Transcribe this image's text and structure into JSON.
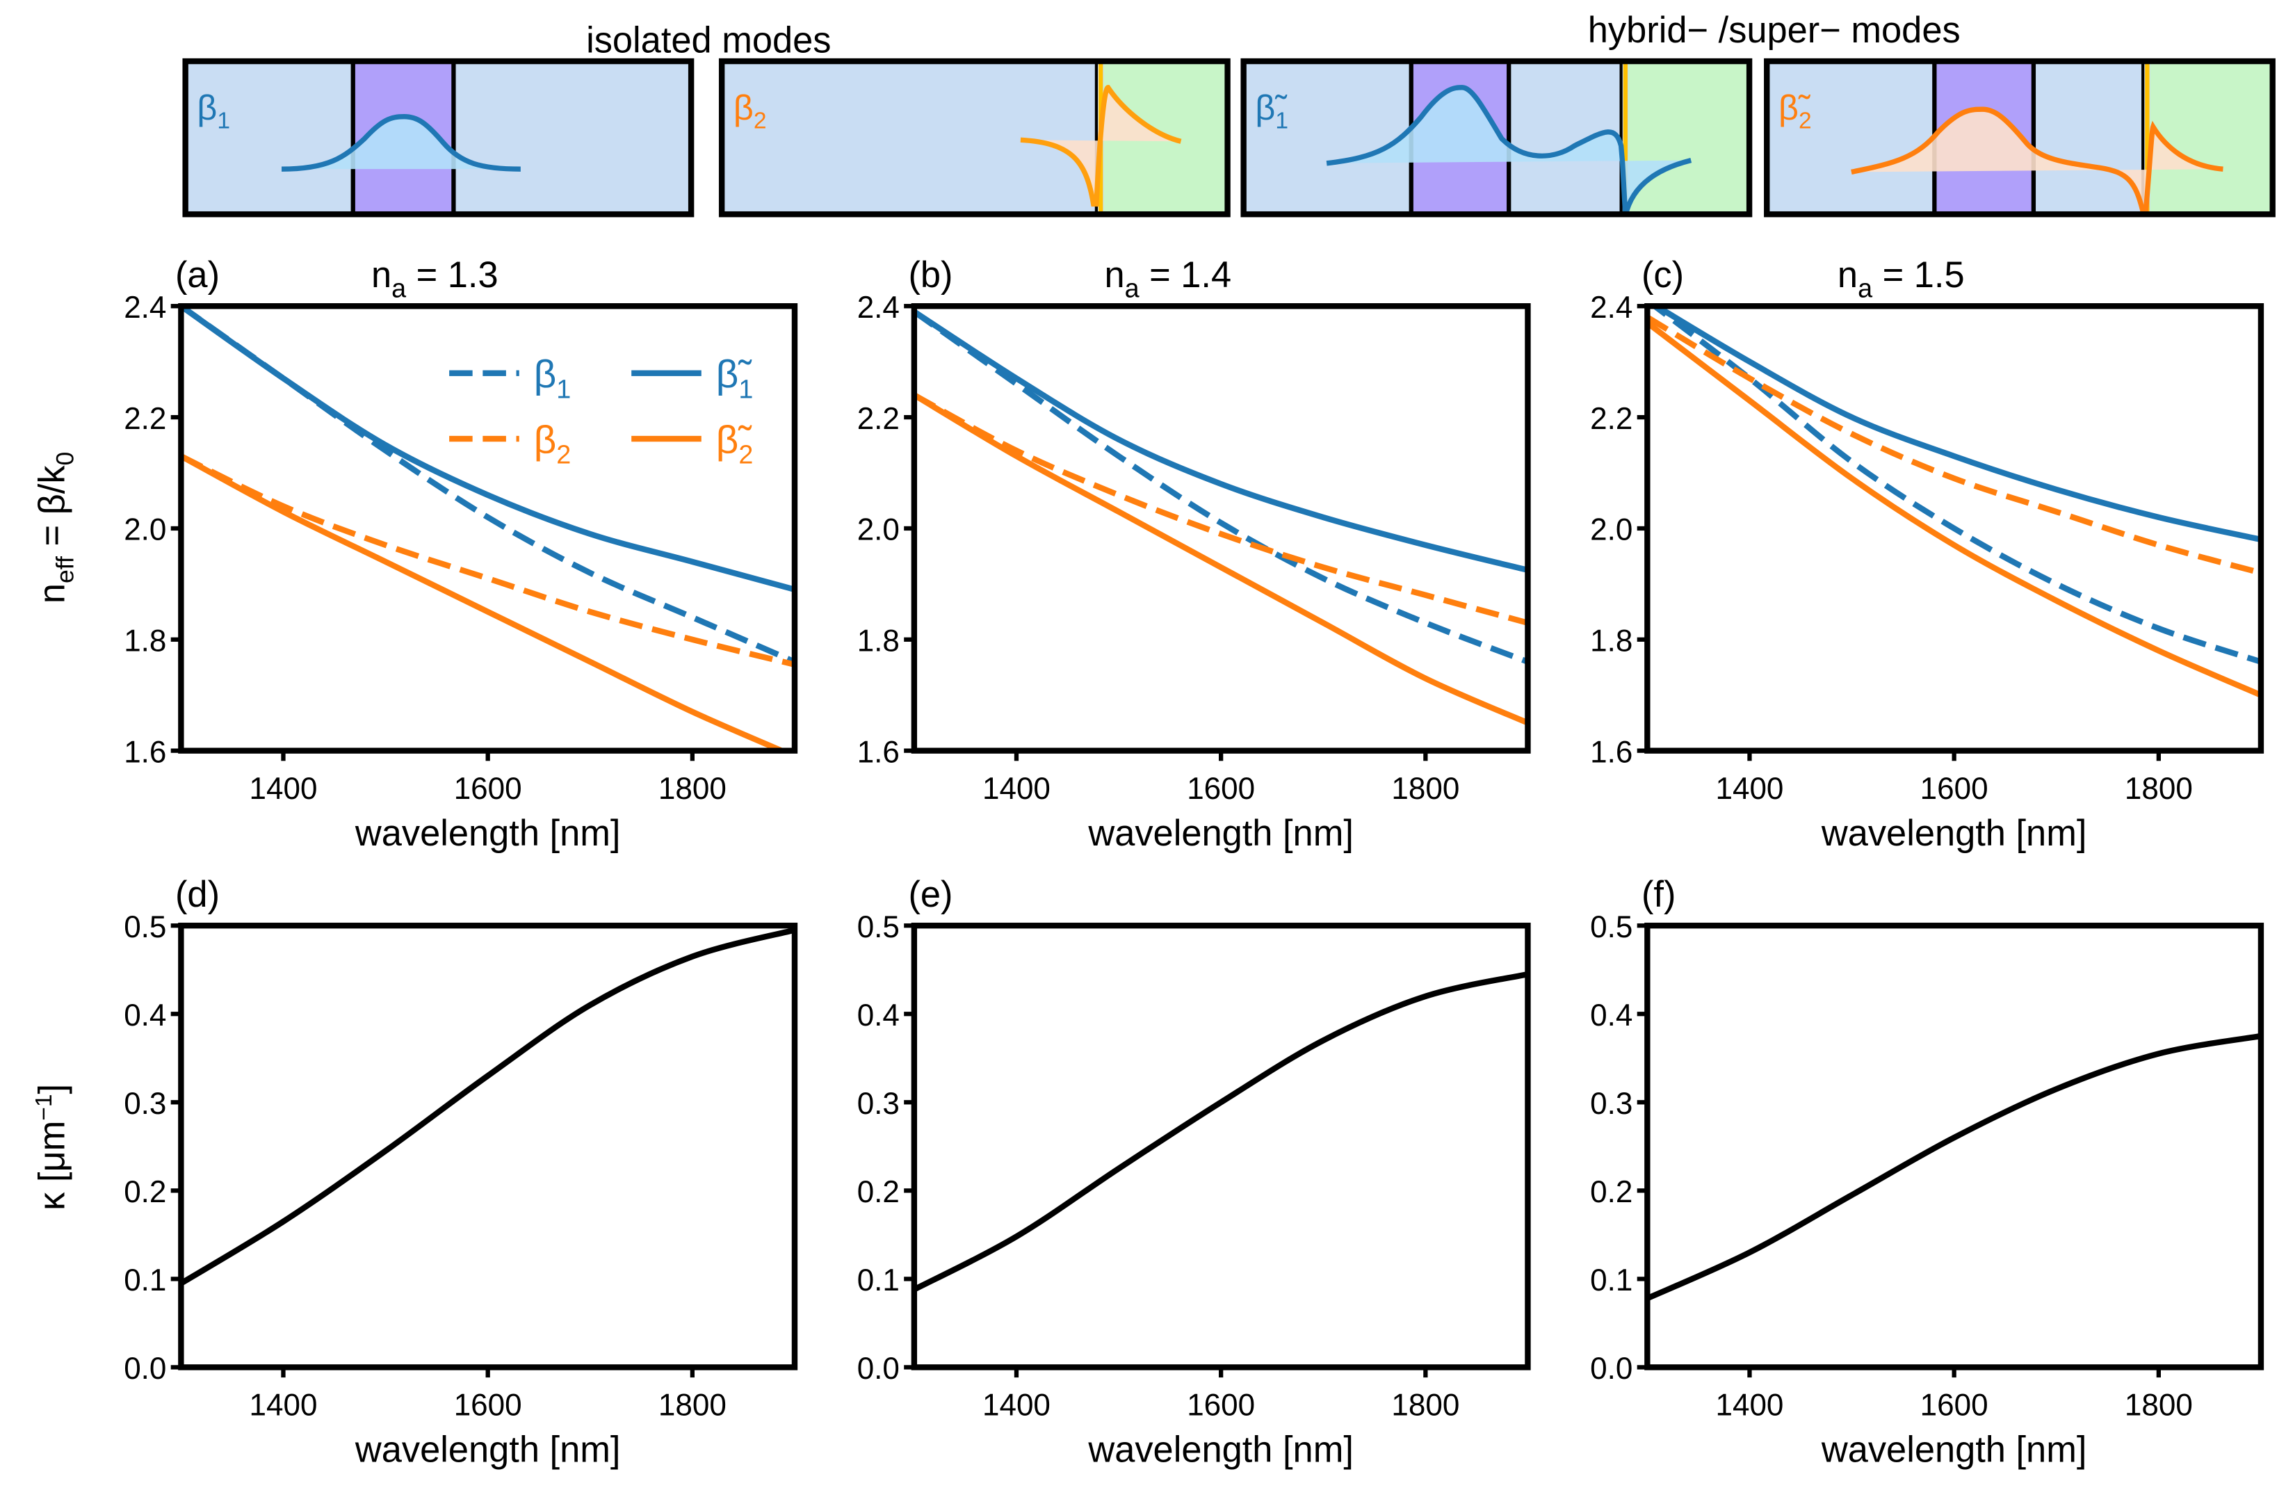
{
  "schematic": {
    "left_title": "isolated modes",
    "right_title": "hybrid− /super− modes",
    "boxes": [
      {
        "label": "β",
        "sub": "1",
        "color": "#1f77b4"
      },
      {
        "label": "β",
        "sub": "2",
        "color": "#ff7f0e"
      },
      {
        "label": "β̃",
        "sub": "1",
        "color": "#1f77b4"
      },
      {
        "label": "β̃",
        "sub": "2",
        "color": "#ff7f0e"
      }
    ],
    "colors": {
      "cladding": "#c9ddf3",
      "core": "#b0a0fa",
      "analyte": "#c8f5c8",
      "metal": "#ffc000"
    }
  },
  "ylabels": {
    "neff": {
      "main": "n",
      "sub": "eff",
      "rest": " = β/k",
      "sub2": "0"
    },
    "kappa": {
      "main": "κ [μm",
      "sup": "−1",
      "rest": "]"
    }
  },
  "chart_data": [
    {
      "type": "line",
      "panel": "(a)",
      "title_main": "n",
      "title_sub": "a",
      "title_rest": " = 1.3",
      "xlabel": "wavelength [nm]",
      "xlim": [
        1300,
        1900
      ],
      "ylim": [
        1.6,
        2.4
      ],
      "xticks": [
        "1400",
        "1600",
        "1800"
      ],
      "yticks": [
        "1.6",
        "1.8",
        "2.0",
        "2.2",
        "2.4"
      ],
      "x": [
        1300,
        1400,
        1500,
        1600,
        1700,
        1800,
        1900
      ],
      "legend": [
        {
          "label": "β",
          "sub": "1"
        },
        {
          "label": "β",
          "sub": "2"
        },
        {
          "label": "β̃",
          "sub": "1"
        },
        {
          "label": "β̃",
          "sub": "2"
        }
      ],
      "series": [
        {
          "name": "β1",
          "style": "dashed",
          "color": "#1f77b4",
          "values": [
            2.4,
            2.27,
            2.14,
            2.02,
            1.92,
            1.84,
            1.76
          ]
        },
        {
          "name": "β2",
          "style": "dashed",
          "color": "#ff7f0e",
          "values": [
            2.13,
            2.04,
            1.97,
            1.91,
            1.85,
            1.8,
            1.755
          ]
        },
        {
          "name": "β̃1",
          "style": "solid",
          "color": "#1f77b4",
          "values": [
            2.4,
            2.27,
            2.15,
            2.06,
            1.99,
            1.94,
            1.89
          ]
        },
        {
          "name": "β̃2",
          "style": "solid",
          "color": "#ff7f0e",
          "values": [
            2.13,
            2.03,
            1.94,
            1.85,
            1.76,
            1.67,
            1.59
          ]
        }
      ]
    },
    {
      "type": "line",
      "panel": "(b)",
      "title_main": "n",
      "title_sub": "a",
      "title_rest": " = 1.4",
      "xlabel": "wavelength [nm]",
      "xlim": [
        1300,
        1900
      ],
      "ylim": [
        1.6,
        2.4
      ],
      "xticks": [
        "1400",
        "1600",
        "1800"
      ],
      "yticks": [
        "1.6",
        "1.8",
        "2.0",
        "2.2",
        "2.4"
      ],
      "x": [
        1300,
        1400,
        1500,
        1600,
        1700,
        1800,
        1900
      ],
      "series": [
        {
          "name": "β1",
          "style": "dashed",
          "color": "#1f77b4",
          "values": [
            2.39,
            2.26,
            2.13,
            2.01,
            1.91,
            1.83,
            1.76
          ]
        },
        {
          "name": "β2",
          "style": "dashed",
          "color": "#ff7f0e",
          "values": [
            2.24,
            2.14,
            2.06,
            1.99,
            1.93,
            1.88,
            1.83
          ]
        },
        {
          "name": "β̃1",
          "style": "solid",
          "color": "#1f77b4",
          "values": [
            2.39,
            2.27,
            2.16,
            2.08,
            2.02,
            1.97,
            1.925
          ]
        },
        {
          "name": "β̃2",
          "style": "solid",
          "color": "#ff7f0e",
          "values": [
            2.24,
            2.13,
            2.03,
            1.93,
            1.83,
            1.73,
            1.65
          ]
        }
      ]
    },
    {
      "type": "line",
      "panel": "(c)",
      "title_main": "n",
      "title_sub": "a",
      "title_rest": " = 1.5",
      "xlabel": "wavelength [nm]",
      "xlim": [
        1300,
        1900
      ],
      "ylim": [
        1.6,
        2.4
      ],
      "xticks": [
        "1400",
        "1600",
        "1800"
      ],
      "yticks": [
        "1.6",
        "1.8",
        "2.0",
        "2.2",
        "2.4"
      ],
      "x": [
        1300,
        1400,
        1500,
        1600,
        1700,
        1800,
        1900
      ],
      "series": [
        {
          "name": "β1",
          "style": "dashed",
          "color": "#1f77b4",
          "values": [
            2.41,
            2.27,
            2.12,
            2.0,
            1.9,
            1.82,
            1.76
          ]
        },
        {
          "name": "β2",
          "style": "dashed",
          "color": "#ff7f0e",
          "values": [
            2.38,
            2.27,
            2.17,
            2.09,
            2.03,
            1.97,
            1.92
          ]
        },
        {
          "name": "β̃1",
          "style": "solid",
          "color": "#1f77b4",
          "values": [
            2.41,
            2.3,
            2.2,
            2.13,
            2.07,
            2.02,
            1.98
          ]
        },
        {
          "name": "β̃2",
          "style": "solid",
          "color": "#ff7f0e",
          "values": [
            2.37,
            2.23,
            2.09,
            1.97,
            1.87,
            1.78,
            1.7
          ]
        }
      ]
    },
    {
      "type": "line",
      "panel": "(d)",
      "xlabel": "wavelength [nm]",
      "xlim": [
        1300,
        1900
      ],
      "ylim": [
        0,
        0.5
      ],
      "xticks": [
        "1400",
        "1600",
        "1800"
      ],
      "yticks": [
        "0.0",
        "0.1",
        "0.2",
        "0.3",
        "0.4",
        "0.5"
      ],
      "x": [
        1300,
        1400,
        1500,
        1600,
        1700,
        1800,
        1900
      ],
      "series": [
        {
          "name": "κ",
          "style": "solid",
          "color": "#000000",
          "values": [
            0.095,
            0.165,
            0.245,
            0.33,
            0.41,
            0.465,
            0.495
          ]
        }
      ]
    },
    {
      "type": "line",
      "panel": "(e)",
      "xlabel": "wavelength [nm]",
      "xlim": [
        1300,
        1900
      ],
      "ylim": [
        0,
        0.5
      ],
      "xticks": [
        "1400",
        "1600",
        "1800"
      ],
      "yticks": [
        "0.0",
        "0.1",
        "0.2",
        "0.3",
        "0.4",
        "0.5"
      ],
      "x": [
        1300,
        1400,
        1500,
        1600,
        1700,
        1800,
        1900
      ],
      "series": [
        {
          "name": "κ",
          "style": "solid",
          "color": "#000000",
          "values": [
            0.088,
            0.148,
            0.225,
            0.3,
            0.37,
            0.42,
            0.445
          ]
        }
      ]
    },
    {
      "type": "line",
      "panel": "(f)",
      "xlabel": "wavelength [nm]",
      "xlim": [
        1300,
        1900
      ],
      "ylim": [
        0,
        0.5
      ],
      "xticks": [
        "1400",
        "1600",
        "1800"
      ],
      "yticks": [
        "0.0",
        "0.1",
        "0.2",
        "0.3",
        "0.4",
        "0.5"
      ],
      "x": [
        1300,
        1400,
        1500,
        1600,
        1700,
        1800,
        1900
      ],
      "series": [
        {
          "name": "κ",
          "style": "solid",
          "color": "#000000",
          "values": [
            0.078,
            0.13,
            0.195,
            0.26,
            0.315,
            0.355,
            0.375
          ]
        }
      ]
    }
  ]
}
